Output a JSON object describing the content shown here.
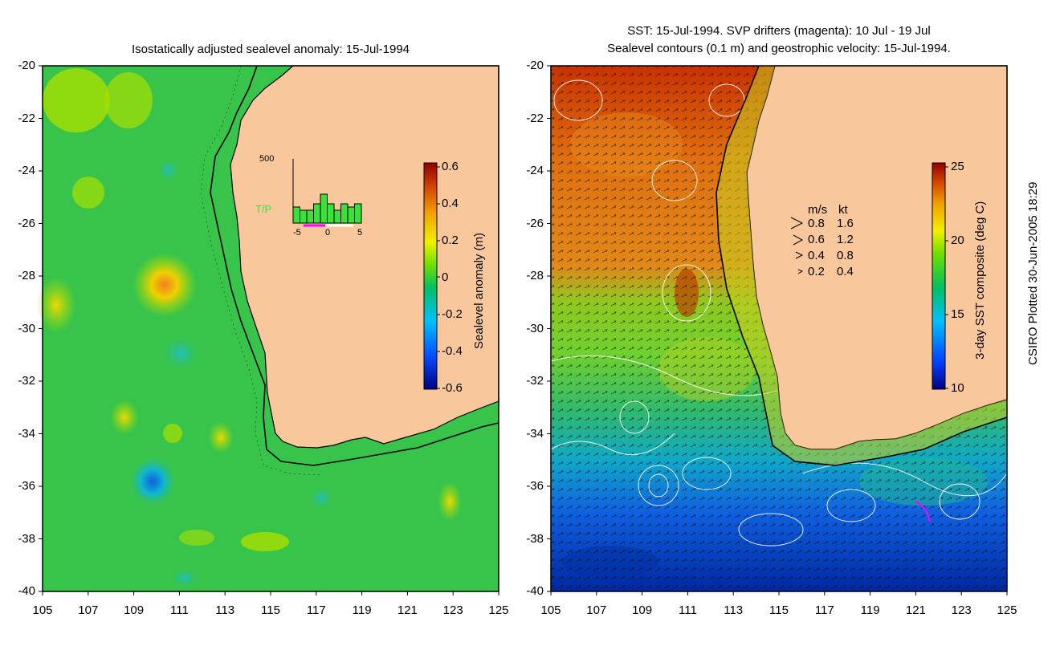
{
  "left_map": {
    "title": "Isostatically adjusted sealevel anomaly: 15-Jul-1994",
    "x_ticks": [
      "105",
      "107",
      "109",
      "111",
      "113",
      "115",
      "117",
      "119",
      "121",
      "123",
      "125"
    ],
    "y_ticks": [
      "-20",
      "-22",
      "-24",
      "-26",
      "-28",
      "-30",
      "-32",
      "-34",
      "-36",
      "-38",
      "-40"
    ],
    "colorbar": {
      "label": "Sealevel anomaly (m)",
      "ticks": [
        "0.6",
        "0.4",
        "0.2",
        "0",
        "-0.2",
        "-0.4",
        "-0.6"
      ]
    },
    "histogram": {
      "y_top_label": "500",
      "series_label": "T/P",
      "x_ticks": [
        "-5",
        "0",
        "5"
      ],
      "bars": [
        0.25,
        0.2,
        0.2,
        0.3,
        0.45,
        0.3,
        0.2,
        0.3,
        0.25,
        0.3
      ]
    }
  },
  "right_map": {
    "title_line1": "SST: 15-Jul-1994. SVP drifters (magenta): 10 Jul - 19 Jul",
    "title_line2": "Sealevel contours (0.1 m) and geostrophic velocity: 15-Jul-1994.",
    "x_ticks": [
      "105",
      "107",
      "109",
      "111",
      "113",
      "115",
      "117",
      "119",
      "121",
      "123",
      "125"
    ],
    "y_ticks": [
      "-20",
      "-22",
      "-24",
      "-26",
      "-28",
      "-30",
      "-32",
      "-34",
      "-36",
      "-38",
      "-40"
    ],
    "colorbar": {
      "label": "3-day SST composite (deg C)",
      "ticks": [
        "25",
        "20",
        "15",
        "10"
      ]
    },
    "velocity_legend": {
      "header_ms": "m/s",
      "header_kt": "kt",
      "rows": [
        {
          "ms": "0.8",
          "kt": "1.6"
        },
        {
          "ms": "0.6",
          "kt": "1.2"
        },
        {
          "ms": "0.4",
          "kt": "0.8"
        },
        {
          "ms": "0.2",
          "kt": "0.4"
        }
      ]
    }
  },
  "credit": "CSIRO Plotted 30-Jun-2005 18:29"
}
